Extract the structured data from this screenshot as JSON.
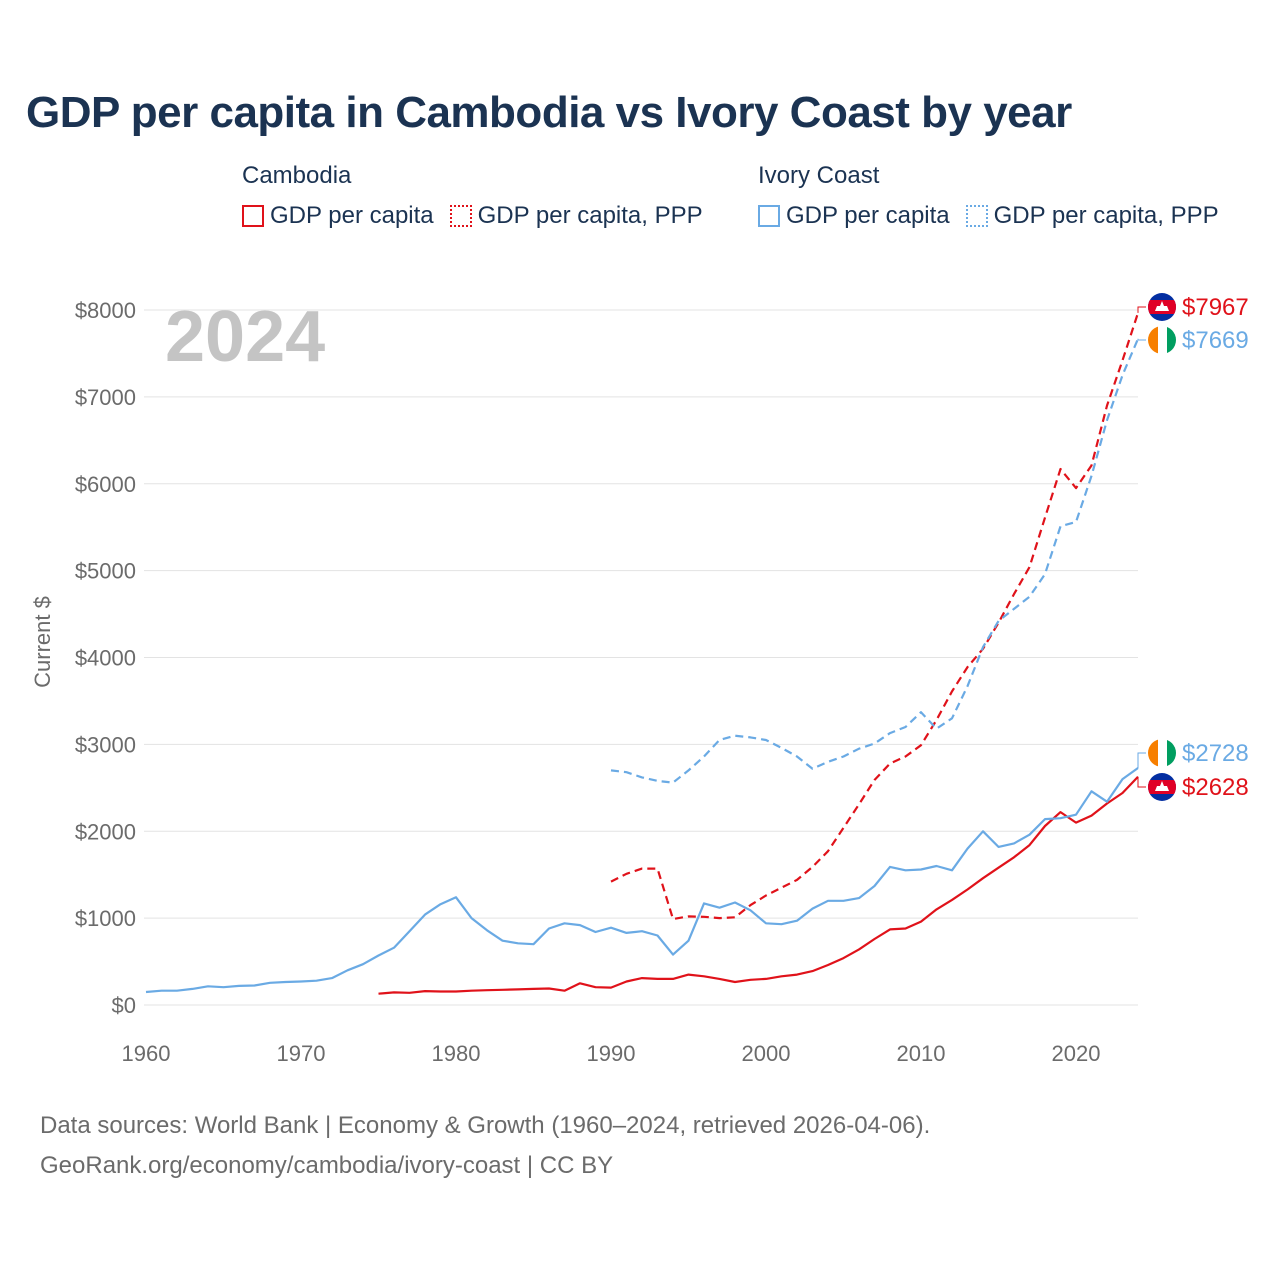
{
  "page": {
    "title": "GDP per capita in Cambodia vs Ivory Coast by year",
    "year": "2024",
    "footer_line1": "Data sources: World Bank | Economy & Growth (1960–2024, retrieved 2026-04-06).",
    "footer_line2": "GeoRank.org/economy/cambodia/ivory-coast | CC BY"
  },
  "legend": {
    "groups": [
      {
        "name": "Cambodia",
        "items": [
          "GDP per capita",
          "GDP per capita, PPP"
        ]
      },
      {
        "name": "Ivory Coast",
        "items": [
          "GDP per capita",
          "GDP per capita, PPP"
        ]
      }
    ]
  },
  "colors": {
    "cambodia": "#e0121a",
    "ivory_coast": "#6aaae4",
    "grid": "#e3e3e3",
    "text": "#1b3352"
  },
  "chart_data": {
    "type": "line",
    "ylabel": "Current $",
    "xlim": [
      1960,
      2024
    ],
    "ylim": [
      0,
      8000
    ],
    "x_ticks": [
      1960,
      1970,
      1980,
      1990,
      2000,
      2010,
      2020
    ],
    "y_ticks": [
      0,
      1000,
      2000,
      3000,
      4000,
      5000,
      6000,
      7000,
      8000
    ],
    "y_tick_labels": [
      "$0",
      "$1000",
      "$2000",
      "$3000",
      "$4000",
      "$5000",
      "$6000",
      "$7000",
      "$8000"
    ],
    "series": [
      {
        "id": "kh_gdp",
        "name": "Cambodia — GDP per capita",
        "country": "Cambodia",
        "style": "solid",
        "color": "#e0121a",
        "x": [
          1975,
          1976,
          1977,
          1978,
          1979,
          1980,
          1981,
          1982,
          1983,
          1984,
          1985,
          1986,
          1987,
          1988,
          1989,
          1990,
          1991,
          1992,
          1993,
          1994,
          1995,
          1996,
          1997,
          1998,
          1999,
          2000,
          2001,
          2002,
          2003,
          2004,
          2005,
          2006,
          2007,
          2008,
          2009,
          2010,
          2011,
          2012,
          2013,
          2014,
          2015,
          2016,
          2017,
          2018,
          2019,
          2020,
          2021,
          2022,
          2023,
          2024
        ],
        "values": [
          130,
          145,
          140,
          160,
          155,
          155,
          165,
          170,
          175,
          180,
          185,
          190,
          165,
          250,
          205,
          200,
          270,
          310,
          300,
          300,
          350,
          330,
          300,
          265,
          290,
          300,
          330,
          350,
          390,
          460,
          540,
          640,
          760,
          870,
          880,
          960,
          1100,
          1210,
          1330,
          1460,
          1580,
          1700,
          1840,
          2060,
          2220,
          2100,
          2180,
          2320,
          2440,
          2628
        ]
      },
      {
        "id": "kh_ppp",
        "name": "Cambodia — GDP per capita, PPP",
        "country": "Cambodia",
        "style": "dashed",
        "color": "#e0121a",
        "x": [
          1990,
          1991,
          1992,
          1993,
          1994,
          1995,
          1996,
          1997,
          1998,
          1999,
          2000,
          2001,
          2002,
          2003,
          2004,
          2005,
          2006,
          2007,
          2008,
          2009,
          2010,
          2011,
          2012,
          2013,
          2014,
          2015,
          2016,
          2017,
          2018,
          2019,
          2020,
          2021,
          2022,
          2023,
          2024
        ],
        "values": [
          1420,
          1510,
          1570,
          1570,
          990,
          1020,
          1015,
          1000,
          1010,
          1150,
          1260,
          1350,
          1440,
          1590,
          1770,
          2040,
          2310,
          2590,
          2780,
          2860,
          2990,
          3280,
          3610,
          3890,
          4100,
          4400,
          4730,
          5040,
          5610,
          6170,
          5950,
          6210,
          6900,
          7420,
          7967
        ]
      },
      {
        "id": "ci_gdp",
        "name": "Ivory Coast — GDP per capita",
        "country": "Ivory Coast",
        "style": "solid",
        "color": "#6aaae4",
        "x": [
          1960,
          1961,
          1962,
          1963,
          1964,
          1965,
          1966,
          1967,
          1968,
          1969,
          1970,
          1971,
          1972,
          1973,
          1974,
          1975,
          1976,
          1977,
          1978,
          1979,
          1980,
          1981,
          1982,
          1983,
          1984,
          1985,
          1986,
          1987,
          1988,
          1989,
          1990,
          1991,
          1992,
          1993,
          1994,
          1995,
          1996,
          1997,
          1998,
          1999,
          2000,
          2001,
          2002,
          2003,
          2004,
          2005,
          2006,
          2007,
          2008,
          2009,
          2010,
          2011,
          2012,
          2013,
          2014,
          2015,
          2016,
          2017,
          2018,
          2019,
          2020,
          2021,
          2022,
          2023,
          2024
        ],
        "values": [
          150,
          165,
          165,
          185,
          215,
          205,
          220,
          225,
          255,
          265,
          270,
          280,
          310,
          400,
          470,
          570,
          660,
          850,
          1040,
          1160,
          1240,
          1000,
          860,
          740,
          710,
          700,
          880,
          940,
          920,
          840,
          890,
          830,
          850,
          800,
          580,
          740,
          1170,
          1120,
          1180,
          1090,
          940,
          930,
          970,
          1110,
          1200,
          1200,
          1230,
          1370,
          1590,
          1550,
          1560,
          1600,
          1550,
          1800,
          2000,
          1820,
          1860,
          1960,
          2140,
          2150,
          2190,
          2460,
          2340,
          2600,
          2728
        ]
      },
      {
        "id": "ci_ppp",
        "name": "Ivory Coast — GDP per capita, PPP",
        "country": "Ivory Coast",
        "style": "dashed",
        "color": "#6aaae4",
        "x": [
          1990,
          1991,
          1992,
          1993,
          1994,
          1995,
          1996,
          1997,
          1998,
          1999,
          2000,
          2001,
          2002,
          2003,
          2004,
          2005,
          2006,
          2007,
          2008,
          2009,
          2010,
          2011,
          2012,
          2013,
          2014,
          2015,
          2016,
          2017,
          2018,
          2019,
          2020,
          2021,
          2022,
          2023,
          2024
        ],
        "values": [
          2700,
          2680,
          2620,
          2580,
          2560,
          2700,
          2860,
          3050,
          3100,
          3080,
          3050,
          2960,
          2860,
          2720,
          2800,
          2860,
          2950,
          3010,
          3130,
          3200,
          3370,
          3180,
          3300,
          3670,
          4120,
          4420,
          4560,
          4700,
          4960,
          5510,
          5560,
          6090,
          6730,
          7250,
          7669
        ]
      }
    ],
    "end_labels": [
      {
        "series": "kh_ppp",
        "text": "$7967",
        "country": "Cambodia"
      },
      {
        "series": "ci_ppp",
        "text": "$7669",
        "country": "Ivory Coast"
      },
      {
        "series": "ci_gdp",
        "text": "$2728",
        "country": "Ivory Coast"
      },
      {
        "series": "kh_gdp",
        "text": "$2628",
        "country": "Cambodia"
      }
    ]
  }
}
